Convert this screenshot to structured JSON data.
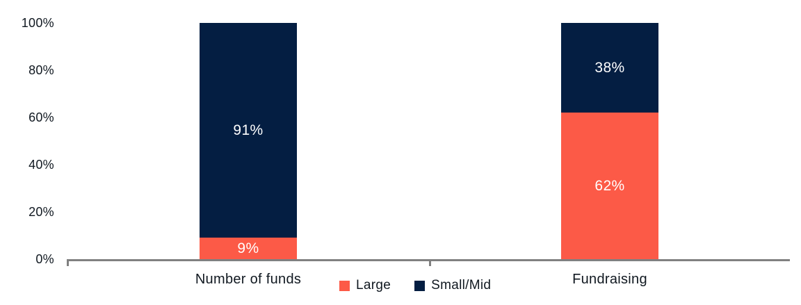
{
  "chart_data": {
    "type": "bar",
    "stacked": true,
    "title": "",
    "xlabel": "",
    "ylabel": "",
    "ylim": [
      0,
      100
    ],
    "grid": false,
    "legend_position": "bottom-center",
    "y_ticks": [
      "100%",
      "80%",
      "60%",
      "40%",
      "20%",
      "0%"
    ],
    "categories": [
      "Number of funds",
      "Fundraising"
    ],
    "series": [
      {
        "name": "Large",
        "color": "#FC5A47",
        "values": [
          9,
          62
        ]
      },
      {
        "name": "Small/Mid",
        "color": "#041E42",
        "values": [
          91,
          38
        ]
      }
    ],
    "bars": [
      {
        "category": "Number of funds",
        "segments": [
          {
            "series": "Large",
            "value": 9,
            "label": "9%"
          },
          {
            "series": "Small/Mid",
            "value": 91,
            "label": "91%"
          }
        ]
      },
      {
        "category": "Fundraising",
        "segments": [
          {
            "series": "Large",
            "value": 62,
            "label": "62%"
          },
          {
            "series": "Small/Mid",
            "value": 38,
            "label": "38%"
          }
        ]
      }
    ]
  },
  "colors": {
    "large": "#FC5A47",
    "small_mid": "#041E42",
    "axis": "#808080",
    "text": "#101820",
    "bar_label_text": "#ffffff",
    "background": "#ffffff"
  }
}
